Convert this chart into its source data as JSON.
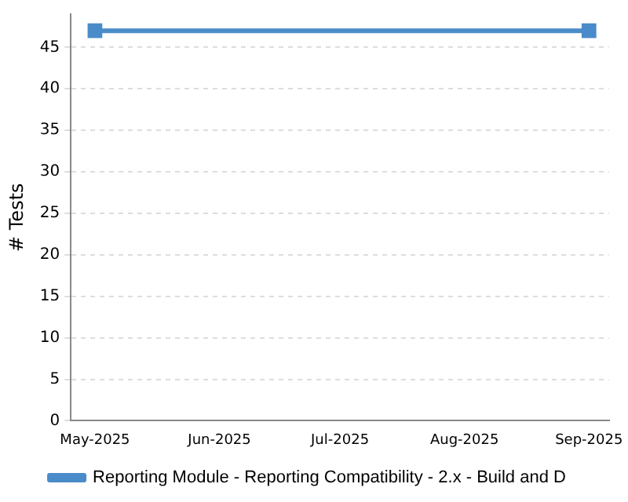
{
  "chart_data": {
    "type": "line",
    "ylabel": "# Tests",
    "x": [
      "2025-05",
      "2025-09"
    ],
    "series": [
      {
        "name": "Reporting Module - Reporting Compatibility - 2.x - Build and D",
        "color": "#4a8bc9",
        "values": [
          47,
          47
        ]
      }
    ],
    "xlim": [
      "2025-04-25",
      "2025-09-06"
    ],
    "xticks": [
      {
        "value": "2025-05",
        "label": "May-2025"
      },
      {
        "value": "2025-06",
        "label": "Jun-2025"
      },
      {
        "value": "2025-07",
        "label": "Jul-2025"
      },
      {
        "value": "2025-08",
        "label": "Aug-2025"
      },
      {
        "value": "2025-09",
        "label": "Sep-2025"
      }
    ],
    "ylim": [
      0,
      49
    ],
    "yticks": [
      0,
      5,
      10,
      15,
      20,
      25,
      30,
      35,
      40,
      45
    ],
    "grid": "y",
    "legend": "bottom",
    "marker": "square",
    "line_style": "solid"
  }
}
